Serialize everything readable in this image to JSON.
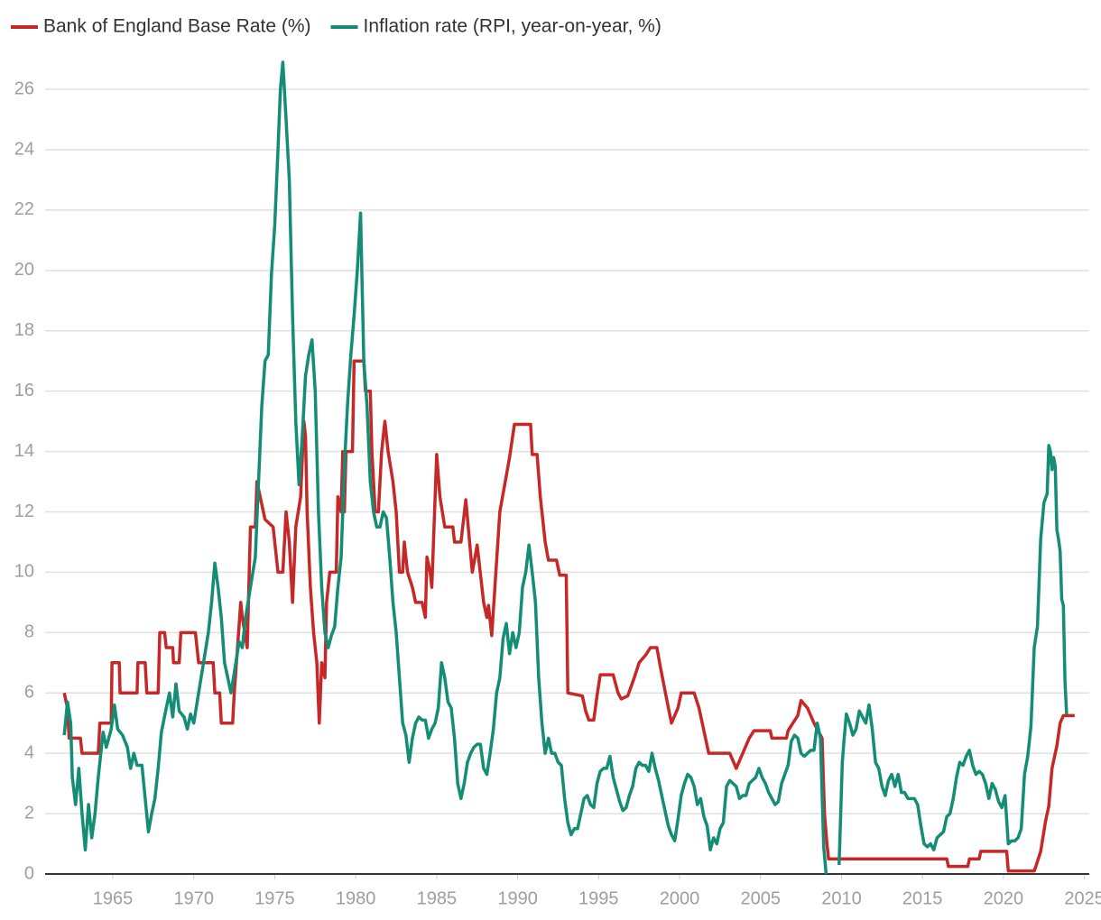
{
  "chart_data": {
    "type": "line",
    "series": [
      {
        "name": "Bank of England Base Rate (%)",
        "color": "#c62828",
        "x": [
          1962.0,
          1962.2,
          1962.3,
          1963.0,
          1963.1,
          1964.1,
          1964.2,
          1964.9,
          1964.95,
          1965.4,
          1965.45,
          1966.5,
          1966.55,
          1967.0,
          1967.1,
          1967.8,
          1967.9,
          1968.2,
          1968.3,
          1968.7,
          1968.75,
          1969.1,
          1969.2,
          1970.1,
          1970.2,
          1970.3,
          1971.2,
          1971.3,
          1971.6,
          1971.7,
          1972.4,
          1972.5,
          1972.9,
          1973.0,
          1973.3,
          1973.5,
          1973.8,
          1973.9,
          1974.1,
          1974.4,
          1974.9,
          1975.2,
          1975.5,
          1975.7,
          1975.9,
          1976.1,
          1976.3,
          1976.6,
          1976.8,
          1976.9,
          1977.0,
          1977.2,
          1977.4,
          1977.6,
          1977.75,
          1977.9,
          1978.1,
          1978.2,
          1978.4,
          1978.8,
          1978.9,
          1979.1,
          1979.2,
          1979.3,
          1979.4,
          1979.8,
          1979.9,
          1980.5,
          1980.6,
          1980.9,
          1981.0,
          1981.2,
          1981.4,
          1981.6,
          1981.8,
          1982.0,
          1982.3,
          1982.5,
          1982.7,
          1982.9,
          1983.0,
          1983.2,
          1983.5,
          1983.7,
          1984.1,
          1984.3,
          1984.4,
          1984.6,
          1984.7,
          1985.0,
          1985.2,
          1985.5,
          1986.0,
          1986.1,
          1986.5,
          1986.8,
          1987.2,
          1987.5,
          1987.9,
          1988.1,
          1988.2,
          1988.4,
          1988.9,
          1989.2,
          1989.5,
          1989.8,
          1990.8,
          1990.9,
          1991.2,
          1991.4,
          1991.7,
          1991.9,
          1992.4,
          1992.6,
          1993.0,
          1993.1,
          1994.0,
          1994.2,
          1994.4,
          1994.7,
          1994.9,
          1995.1,
          1995.9,
          1996.2,
          1996.4,
          1996.8,
          1997.2,
          1997.5,
          1997.9,
          1998.2,
          1998.6,
          1998.8,
          1999.2,
          1999.5,
          1999.9,
          2000.1,
          2000.9,
          2001.2,
          2001.6,
          2001.8,
          2003.1,
          2003.3,
          2003.5,
          2003.9,
          2004.3,
          2004.6,
          2005.6,
          2005.7,
          2006.6,
          2006.7,
          2007.3,
          2007.5,
          2007.9,
          2008.3,
          2008.8,
          2008.95,
          2009.1,
          2009.2,
          2016.5,
          2016.6,
          2017.8,
          2017.9,
          2018.5,
          2018.6,
          2020.2,
          2020.3,
          2021.9,
          2022.0,
          2022.3,
          2022.6,
          2022.8,
          2023.0,
          2023.3,
          2023.5,
          2023.7,
          2024.4
        ],
        "values": [
          6,
          5.5,
          4.5,
          4.5,
          4,
          4,
          5,
          5,
          7,
          7,
          6,
          6,
          7,
          7,
          6,
          6,
          8,
          8,
          7.5,
          7.5,
          7,
          7,
          8,
          8,
          7.5,
          7,
          7,
          6,
          6,
          5,
          5,
          6,
          9,
          8.5,
          7.5,
          11.5,
          11.5,
          13,
          12.5,
          11.75,
          11.5,
          10,
          10,
          12,
          11,
          9,
          11.5,
          12.5,
          15,
          14.5,
          12,
          9.5,
          8,
          7,
          5,
          7,
          6.5,
          9,
          10,
          10,
          12.5,
          12,
          14,
          12,
          14,
          14,
          17,
          17,
          16,
          16,
          14,
          12,
          12,
          14,
          15,
          14,
          13,
          12,
          10,
          10,
          11,
          10,
          9.5,
          9,
          9,
          8.5,
          10.5,
          10,
          9.5,
          13.9,
          12.5,
          11.5,
          11.5,
          11,
          11,
          12.4,
          10,
          10.9,
          9,
          8.5,
          8.9,
          7.9,
          12,
          12.9,
          13.8,
          14.9,
          14.9,
          13.9,
          13.9,
          12.5,
          11,
          10.4,
          10.4,
          9.9,
          9.9,
          6,
          5.9,
          5.4,
          5.1,
          5.1,
          5.9,
          6.6,
          6.6,
          6,
          5.8,
          5.9,
          6.5,
          7,
          7.25,
          7.5,
          7.5,
          6.9,
          5.8,
          5,
          5.5,
          6,
          6,
          5.5,
          4.5,
          4,
          4,
          3.75,
          3.5,
          4,
          4.5,
          4.75,
          4.75,
          4.5,
          4.5,
          4.75,
          5.25,
          5.75,
          5.5,
          5,
          4.5,
          2,
          1,
          0.5,
          0.5,
          0.25,
          0.25,
          0.5,
          0.5,
          0.75,
          0.75,
          0.1,
          0.1,
          0.25,
          0.75,
          1.75,
          2.25,
          3.5,
          4.25,
          5,
          5.25,
          5.25
        ]
      },
      {
        "name": "Inflation rate (RPI, year-on-year, %)",
        "color": "#138d75",
        "x": [
          1962.0,
          1962.2,
          1962.4,
          1962.5,
          1962.7,
          1962.9,
          1963.1,
          1963.3,
          1963.5,
          1963.7,
          1963.9,
          1964.1,
          1964.4,
          1964.6,
          1964.9,
          1965.1,
          1965.3,
          1965.6,
          1965.9,
          1966.1,
          1966.3,
          1966.5,
          1966.8,
          1967.0,
          1967.2,
          1967.4,
          1967.6,
          1967.8,
          1968.0,
          1968.3,
          1968.5,
          1968.7,
          1968.9,
          1969.1,
          1969.4,
          1969.6,
          1969.8,
          1970.0,
          1970.3,
          1970.6,
          1970.9,
          1971.1,
          1971.3,
          1971.5,
          1971.7,
          1971.9,
          1972.1,
          1972.3,
          1972.6,
          1972.8,
          1973.0,
          1973.2,
          1973.5,
          1973.8,
          1974.0,
          1974.2,
          1974.4,
          1974.6,
          1974.8,
          1975.0,
          1975.2,
          1975.35,
          1975.5,
          1975.7,
          1975.9,
          1976.1,
          1976.3,
          1976.5,
          1976.7,
          1976.9,
          1977.1,
          1977.3,
          1977.5,
          1977.7,
          1977.9,
          1978.1,
          1978.3,
          1978.5,
          1978.7,
          1978.9,
          1979.1,
          1979.3,
          1979.5,
          1979.7,
          1979.9,
          1980.1,
          1980.3,
          1980.5,
          1980.7,
          1980.9,
          1981.1,
          1981.3,
          1981.5,
          1981.7,
          1981.9,
          1982.1,
          1982.3,
          1982.5,
          1982.7,
          1982.9,
          1983.1,
          1983.3,
          1983.5,
          1983.7,
          1983.9,
          1984.1,
          1984.3,
          1984.5,
          1984.7,
          1984.9,
          1985.1,
          1985.3,
          1985.5,
          1985.7,
          1985.9,
          1986.1,
          1986.3,
          1986.5,
          1986.7,
          1986.9,
          1987.1,
          1987.3,
          1987.5,
          1987.7,
          1987.9,
          1988.1,
          1988.3,
          1988.5,
          1988.7,
          1988.9,
          1989.1,
          1989.3,
          1989.5,
          1989.7,
          1989.9,
          1990.1,
          1990.3,
          1990.5,
          1990.7,
          1990.9,
          1991.1,
          1991.3,
          1991.5,
          1991.7,
          1991.9,
          1992.1,
          1992.3,
          1992.5,
          1992.7,
          1992.9,
          1993.1,
          1993.3,
          1993.5,
          1993.7,
          1993.9,
          1994.1,
          1994.3,
          1994.5,
          1994.7,
          1994.9,
          1995.1,
          1995.3,
          1995.5,
          1995.7,
          1995.9,
          1996.1,
          1996.3,
          1996.5,
          1996.7,
          1996.9,
          1997.1,
          1997.3,
          1997.5,
          1997.7,
          1997.9,
          1998.1,
          1998.3,
          1998.5,
          1998.7,
          1998.9,
          1999.1,
          1999.3,
          1999.5,
          1999.7,
          1999.9,
          2000.1,
          2000.3,
          2000.5,
          2000.7,
          2000.9,
          2001.1,
          2001.3,
          2001.5,
          2001.7,
          2001.9,
          2002.1,
          2002.3,
          2002.5,
          2002.7,
          2002.9,
          2003.1,
          2003.3,
          2003.5,
          2003.7,
          2003.9,
          2004.1,
          2004.3,
          2004.5,
          2004.7,
          2004.9,
          2005.1,
          2005.3,
          2005.5,
          2005.7,
          2005.9,
          2006.1,
          2006.3,
          2006.5,
          2006.7,
          2006.9,
          2007.1,
          2007.3,
          2007.5,
          2007.7,
          2007.9,
          2008.1,
          2008.3,
          2008.5,
          2008.7,
          2008.9,
          2009.05,
          2009.5,
          2009.85,
          2009.95,
          2010.05,
          2010.15,
          2010.3,
          2010.5,
          2010.7,
          2010.9,
          2011.1,
          2011.3,
          2011.5,
          2011.7,
          2011.9,
          2012.1,
          2012.3,
          2012.5,
          2012.7,
          2012.9,
          2013.1,
          2013.3,
          2013.5,
          2013.7,
          2013.9,
          2014.1,
          2014.3,
          2014.5,
          2014.7,
          2014.9,
          2015.1,
          2015.3,
          2015.5,
          2015.7,
          2015.9,
          2016.1,
          2016.3,
          2016.5,
          2016.7,
          2016.9,
          2017.1,
          2017.3,
          2017.5,
          2017.7,
          2017.9,
          2018.1,
          2018.3,
          2018.5,
          2018.7,
          2018.9,
          2019.1,
          2019.3,
          2019.5,
          2019.7,
          2019.9,
          2020.1,
          2020.3,
          2020.5,
          2020.7,
          2020.9,
          2021.1,
          2021.3,
          2021.5,
          2021.7,
          2021.9,
          2022.1,
          2022.3,
          2022.5,
          2022.7,
          2022.8,
          2022.9,
          2023.0,
          2023.1,
          2023.2,
          2023.3,
          2023.4,
          2023.5,
          2023.6,
          2023.7,
          2023.8,
          2023.9
        ],
        "values": [
          4.6,
          5.7,
          5.0,
          3.2,
          2.3,
          3.5,
          2,
          0.8,
          2.3,
          1.2,
          2,
          3.2,
          4.7,
          4.2,
          4.8,
          5.6,
          4.8,
          4.6,
          4.2,
          3.5,
          4,
          3.6,
          3.6,
          2.5,
          1.4,
          2,
          2.5,
          3.5,
          4.7,
          5.5,
          6,
          5.2,
          6.3,
          5.4,
          5.2,
          4.8,
          5.3,
          5,
          6,
          7,
          8,
          9,
          10.3,
          9.5,
          8.5,
          7,
          6.5,
          6,
          7,
          7.7,
          7.5,
          8.5,
          9.5,
          10.5,
          13,
          15.5,
          17,
          17.2,
          19.9,
          21.5,
          24,
          26,
          26.9,
          25,
          23,
          18.5,
          15,
          12.9,
          14.5,
          16.5,
          17.2,
          17.7,
          16,
          12,
          9.5,
          8,
          7.5,
          7.9,
          8.2,
          9.5,
          10.5,
          13.5,
          15.6,
          17.2,
          18.5,
          20,
          21.9,
          17,
          15.5,
          13,
          12,
          11.5,
          11.5,
          12,
          11.8,
          10.5,
          9,
          8,
          6.5,
          5,
          4.6,
          3.7,
          4.5,
          5,
          5.2,
          5.1,
          5.1,
          4.5,
          4.8,
          5,
          5.5,
          7,
          6.5,
          5.7,
          5.5,
          4.5,
          3,
          2.5,
          3,
          3.7,
          4,
          4.2,
          4.3,
          4.3,
          3.5,
          3.3,
          4,
          4.8,
          6,
          6.5,
          7.8,
          8.3,
          7.3,
          8,
          7.5,
          8,
          9.5,
          10,
          10.9,
          10,
          9,
          6.5,
          5,
          4,
          4.5,
          4,
          4,
          3.7,
          3.6,
          2.5,
          1.7,
          1.3,
          1.5,
          1.5,
          2,
          2.5,
          2.6,
          2.3,
          2.2,
          3,
          3.4,
          3.5,
          3.5,
          3.9,
          3.2,
          2.8,
          2.4,
          2.1,
          2.2,
          2.6,
          2.9,
          3.5,
          3.7,
          3.6,
          3.6,
          3.4,
          4,
          3.5,
          3.1,
          2.6,
          2.1,
          1.6,
          1.3,
          1.1,
          1.8,
          2.6,
          3,
          3.3,
          3.2,
          2.9,
          2.3,
          2.5,
          1.9,
          1.6,
          0.8,
          1.2,
          1,
          1.5,
          1.7,
          2.9,
          3.1,
          3,
          2.9,
          2.5,
          2.6,
          2.6,
          3,
          3.1,
          3.2,
          3.5,
          3.2,
          3,
          2.7,
          2.5,
          2.3,
          2.4,
          3,
          3.3,
          3.6,
          4.4,
          4.6,
          4.5,
          4,
          3.9,
          4,
          4.1,
          4.1,
          5,
          4.5,
          0.9,
          0,
          null,
          0.3,
          2,
          3.7,
          4.4,
          5.3,
          5,
          4.6,
          4.8,
          5.4,
          5.2,
          5,
          5.6,
          4.8,
          3.7,
          3.5,
          2.9,
          2.6,
          3.1,
          3.3,
          2.9,
          3.3,
          2.7,
          2.7,
          2.5,
          2.5,
          2.5,
          2.3,
          1.6,
          1,
          0.9,
          1,
          0.8,
          1.2,
          1.3,
          1.4,
          1.9,
          2,
          2.5,
          3.2,
          3.7,
          3.6,
          3.9,
          4.1,
          3.6,
          3.3,
          3.4,
          3.3,
          3,
          2.5,
          3,
          2.8,
          2.4,
          2.2,
          2.6,
          1,
          1.1,
          1.1,
          1.2,
          1.5,
          3.3,
          3.9,
          4.9,
          7.5,
          8.2,
          11.1,
          12.3,
          12.6,
          14.2,
          14,
          13.4,
          13.8,
          13.5,
          11.4,
          11.1,
          10.7,
          9.1,
          8.9,
          6.4,
          5.3
        ]
      }
    ],
    "xlim": [
      1960.82,
      2025.3
    ],
    "xticks": [
      1965,
      1970,
      1975,
      1980,
      1985,
      1990,
      1995,
      2000,
      2005,
      2010,
      2015,
      2020,
      2025
    ],
    "ylim": [
      0,
      27
    ],
    "yticks": [
      0,
      2,
      4,
      6,
      8,
      10,
      12,
      14,
      16,
      18,
      20,
      22,
      24,
      26
    ],
    "grid": true,
    "legend": "top"
  }
}
